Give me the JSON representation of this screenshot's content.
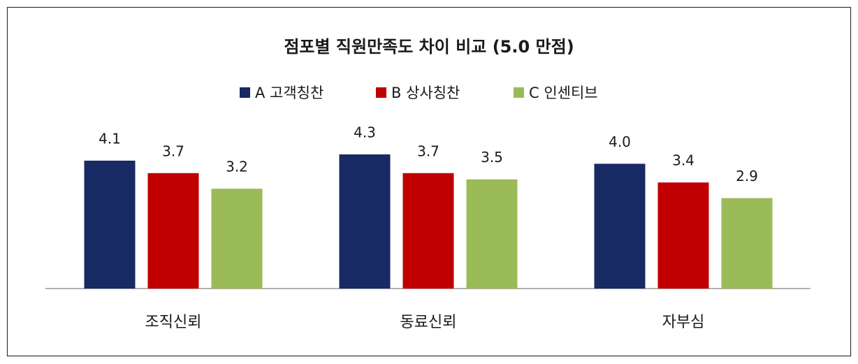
{
  "chart_data": {
    "type": "bar",
    "title": "점포별 직원만족도 차이 비교 (5.0 만점)",
    "categories": [
      "조직신뢰",
      "동료신뢰",
      "자부심"
    ],
    "series": [
      {
        "name": "A 고객칭찬",
        "color": "#172a63",
        "values": [
          4.1,
          4.3,
          4.0
        ],
        "value_labels": [
          "4.1",
          "4.3",
          "4.0"
        ]
      },
      {
        "name": "B 상사칭찬",
        "color": "#c00000",
        "values": [
          3.7,
          3.7,
          3.4
        ],
        "value_labels": [
          "3.7",
          "3.7",
          "3.4"
        ]
      },
      {
        "name": "C 인센티브",
        "color": "#9bbb59",
        "values": [
          3.2,
          3.5,
          2.9
        ],
        "value_labels": [
          "3.2",
          "3.5",
          "2.9"
        ]
      }
    ],
    "legend": "top"
  }
}
